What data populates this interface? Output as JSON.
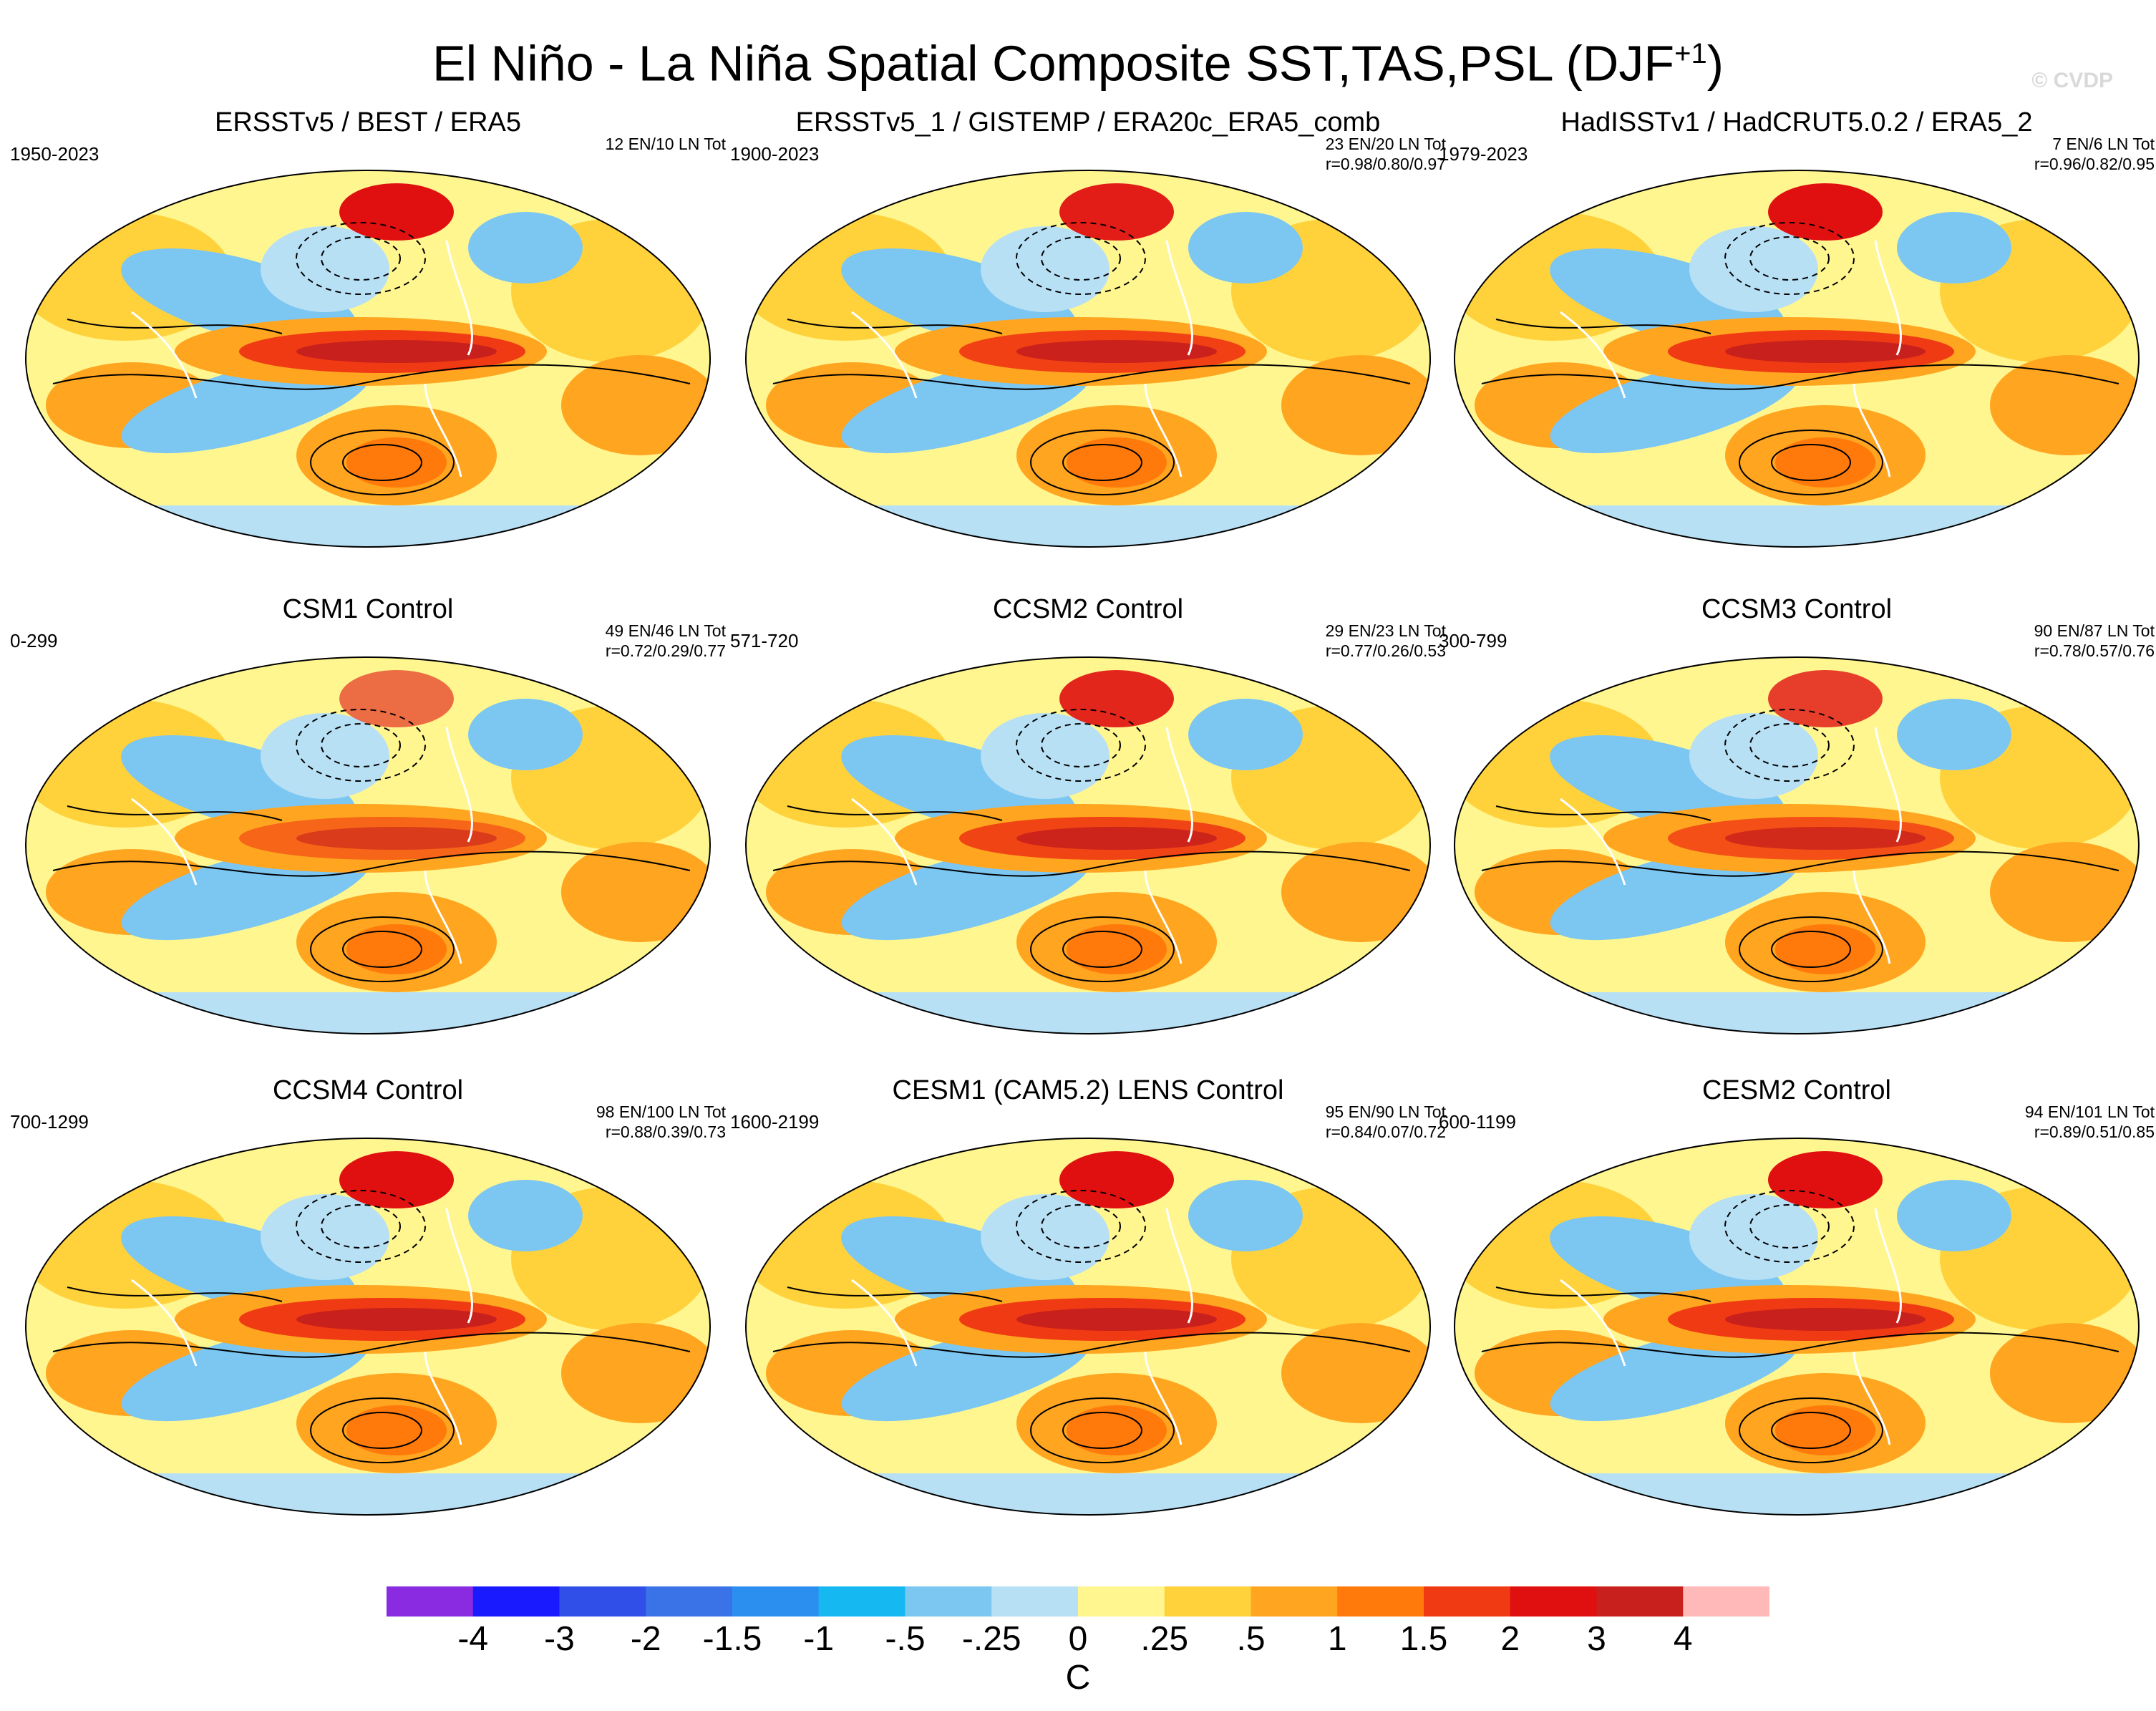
{
  "title": {
    "main": "El Niño - La Niña Spatial Composite SST,TAS,PSL (DJF",
    "sup": "+1",
    "close": ")"
  },
  "watermark": "© CVDP",
  "panels": [
    {
      "title": "ERSSTv5 / BEST / ERA5",
      "years": "1950-2023",
      "counts": "12 EN/10 LN Tot",
      "corr": ""
    },
    {
      "title": "ERSSTv5_1 / GISTEMP / ERA20c_ERA5_comb",
      "years": "1900-2023",
      "counts": "23 EN/20 LN Tot",
      "corr": "r=0.98/0.80/0.97"
    },
    {
      "title": "HadISSTv1 / HadCRUT5.0.2 / ERA5_2",
      "years": "1979-2023",
      "counts": "7 EN/6 LN Tot",
      "corr": "r=0.96/0.82/0.95"
    },
    {
      "title": "CSM1 Control",
      "years": "0-299",
      "counts": "49 EN/46 LN Tot",
      "corr": "r=0.72/0.29/0.77"
    },
    {
      "title": "CCSM2 Control",
      "years": "571-720",
      "counts": "29 EN/23 LN Tot",
      "corr": "r=0.77/0.26/0.53"
    },
    {
      "title": "CCSM3 Control",
      "years": "300-799",
      "counts": "90 EN/87 LN Tot",
      "corr": "r=0.78/0.57/0.76"
    },
    {
      "title": "CCSM4 Control",
      "years": "700-1299",
      "counts": "98 EN/100 LN Tot",
      "corr": "r=0.88/0.39/0.73"
    },
    {
      "title": "CESM1 (CAM5.2) LENS Control",
      "years": "1600-2199",
      "counts": "95 EN/90 LN Tot",
      "corr": "r=0.84/0.07/0.72"
    },
    {
      "title": "CESM2 Control",
      "years": "600-1199",
      "counts": "94 EN/101 LN Tot",
      "corr": "r=0.89/0.51/0.85"
    }
  ],
  "colorbar": {
    "unit": "C",
    "ticks": [
      "-4",
      "-3",
      "-2",
      "-1.5",
      "-1",
      "-.5",
      "-.25",
      "0",
      ".25",
      ".5",
      "1",
      "1.5",
      "2",
      "3",
      "4"
    ],
    "colors": [
      "#8a2be2",
      "#1a1aff",
      "#2f4fe8",
      "#3a73e8",
      "#2b8ff0",
      "#16b8f2",
      "#7cc6f2",
      "#b8e0f5",
      "#fff68f",
      "#ffd23c",
      "#ffa51f",
      "#ff7a0a",
      "#f03a14",
      "#e01010",
      "#c8201c",
      "#ffb9b9"
    ]
  }
}
